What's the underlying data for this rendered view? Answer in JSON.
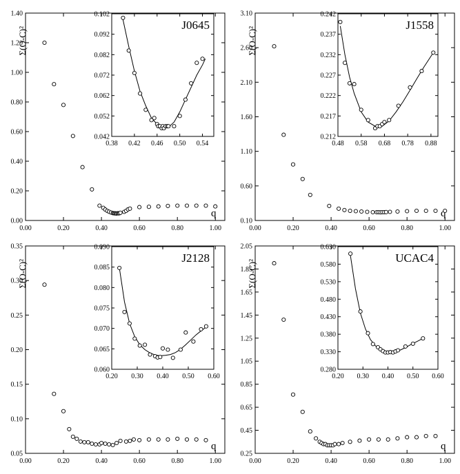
{
  "chart_data": [
    {
      "type": "scatter",
      "id": "J0645",
      "title": "J0645",
      "xlabel": "q",
      "ylabel": "Σ(O-C)²",
      "xlim": [
        0.0,
        1.05
      ],
      "ylim": [
        0.0,
        1.4
      ],
      "xticks": [
        "0.00",
        "0.20",
        "0.40",
        "0.60",
        "0.80",
        "1.00"
      ],
      "yticks": [
        "0.00",
        "0.20",
        "0.40",
        "0.60",
        "0.80",
        "1.00",
        "1.20",
        "1.40"
      ],
      "x": [
        0.1,
        0.15,
        0.2,
        0.25,
        0.3,
        0.35,
        0.39,
        0.41,
        0.42,
        0.43,
        0.44,
        0.45,
        0.46,
        0.465,
        0.47,
        0.475,
        0.48,
        0.485,
        0.49,
        0.495,
        0.5,
        0.52,
        0.53,
        0.54,
        0.55,
        0.6,
        0.65,
        0.7,
        0.75,
        0.8,
        0.85,
        0.9,
        0.95,
        1.0
      ],
      "y": [
        1.2,
        0.92,
        0.78,
        0.57,
        0.36,
        0.21,
        0.1,
        0.085,
        0.074,
        0.065,
        0.059,
        0.054,
        0.05,
        0.049,
        0.048,
        0.048,
        0.047,
        0.049,
        0.048,
        0.049,
        0.052,
        0.058,
        0.065,
        0.075,
        0.08,
        0.09,
        0.092,
        0.095,
        0.098,
        0.1,
        0.1,
        0.1,
        0.1,
        0.095
      ],
      "inset": {
        "xlim": [
          0.38,
          0.56
        ],
        "ylim": [
          0.042,
          0.102
        ],
        "xticks": [
          "0.38",
          "0.42",
          "0.46",
          "0.50",
          "0.54"
        ],
        "yticks": [
          "0.042",
          "0.052",
          "0.062",
          "0.072",
          "0.082",
          "0.092",
          "0.102"
        ],
        "x": [
          0.4,
          0.41,
          0.42,
          0.43,
          0.44,
          0.45,
          0.455,
          0.46,
          0.462,
          0.465,
          0.468,
          0.47,
          0.472,
          0.475,
          0.478,
          0.48,
          0.49,
          0.5,
          0.51,
          0.52,
          0.53,
          0.54
        ],
        "y": [
          0.1,
          0.084,
          0.073,
          0.063,
          0.055,
          0.05,
          0.051,
          0.048,
          0.047,
          0.047,
          0.046,
          0.047,
          0.046,
          0.047,
          0.047,
          0.047,
          0.047,
          0.052,
          0.06,
          0.068,
          0.078,
          0.08
        ],
        "fit_x": [
          0.4,
          0.41,
          0.42,
          0.43,
          0.44,
          0.45,
          0.46,
          0.47,
          0.48,
          0.49,
          0.5,
          0.51,
          0.52,
          0.53,
          0.54,
          0.545
        ],
        "fit_y": [
          0.099,
          0.086,
          0.074,
          0.064,
          0.057,
          0.051,
          0.048,
          0.046,
          0.0465,
          0.049,
          0.054,
          0.06,
          0.066,
          0.072,
          0.077,
          0.08
        ]
      }
    },
    {
      "type": "scatter",
      "id": "J1558",
      "title": "J1558",
      "xlabel": "q",
      "ylabel": "Σ(O-C)²",
      "xlim": [
        0.0,
        1.05
      ],
      "ylim": [
        0.1,
        3.1
      ],
      "xticks": [
        "0.00",
        "0.20",
        "0.40",
        "0.60",
        "0.80",
        "1.00"
      ],
      "yticks": [
        "0.10",
        "0.60",
        "1.10",
        "1.60",
        "2.10",
        "2.60",
        "3.10"
      ],
      "x": [
        0.1,
        0.15,
        0.2,
        0.25,
        0.29,
        0.39,
        0.44,
        0.47,
        0.5,
        0.53,
        0.56,
        0.59,
        0.62,
        0.64,
        0.65,
        0.66,
        0.67,
        0.68,
        0.69,
        0.71,
        0.75,
        0.8,
        0.85,
        0.9,
        0.95,
        1.0
      ],
      "y": [
        2.62,
        1.34,
        0.91,
        0.7,
        0.47,
        0.31,
        0.27,
        0.25,
        0.24,
        0.235,
        0.23,
        0.225,
        0.22,
        0.22,
        0.22,
        0.218,
        0.22,
        0.22,
        0.222,
        0.225,
        0.23,
        0.235,
        0.24,
        0.24,
        0.24,
        0.24
      ],
      "inset": {
        "xlim": [
          0.48,
          0.91
        ],
        "ylim": [
          0.212,
          0.242
        ],
        "xticks": [
          "0.48",
          "0.58",
          "0.68",
          "0.78",
          "0.88"
        ],
        "yticks": [
          "0.212",
          "0.217",
          "0.222",
          "0.227",
          "0.232",
          "0.237",
          "0.242"
        ],
        "x": [
          0.49,
          0.51,
          0.53,
          0.55,
          0.58,
          0.61,
          0.64,
          0.65,
          0.66,
          0.67,
          0.68,
          0.7,
          0.74,
          0.79,
          0.84,
          0.89
        ],
        "y": [
          0.24,
          0.23,
          0.225,
          0.2248,
          0.2185,
          0.216,
          0.214,
          0.2145,
          0.2145,
          0.215,
          0.2155,
          0.216,
          0.2195,
          0.224,
          0.228,
          0.2325
        ],
        "fit_x": [
          0.49,
          0.51,
          0.53,
          0.55,
          0.58,
          0.61,
          0.64,
          0.67,
          0.7,
          0.73,
          0.76,
          0.79,
          0.82,
          0.85,
          0.89
        ],
        "fit_y": [
          0.239,
          0.232,
          0.2265,
          0.2225,
          0.218,
          0.2155,
          0.2145,
          0.2145,
          0.2158,
          0.218,
          0.2205,
          0.2233,
          0.2262,
          0.229,
          0.2325
        ]
      }
    },
    {
      "type": "scatter",
      "id": "J2128",
      "title": "J2128",
      "xlabel": "q",
      "ylabel": "Σ(O-C)²",
      "xlim": [
        0.0,
        1.05
      ],
      "ylim": [
        0.05,
        0.35
      ],
      "xticks": [
        "0.00",
        "0.20",
        "0.40",
        "0.60",
        "0.80",
        "1.00"
      ],
      "yticks": [
        "0.05",
        "0.10",
        "0.15",
        "0.20",
        "0.25",
        "0.30",
        "0.35"
      ],
      "x": [
        0.1,
        0.15,
        0.2,
        0.23,
        0.25,
        0.27,
        0.29,
        0.31,
        0.33,
        0.35,
        0.37,
        0.39,
        0.4,
        0.42,
        0.44,
        0.46,
        0.48,
        0.5,
        0.53,
        0.55,
        0.57,
        0.6,
        0.65,
        0.7,
        0.75,
        0.8,
        0.85,
        0.9,
        0.95
      ],
      "y": [
        0.294,
        0.136,
        0.111,
        0.085,
        0.074,
        0.071,
        0.067,
        0.066,
        0.066,
        0.064,
        0.063,
        0.063,
        0.065,
        0.064,
        0.063,
        0.062,
        0.065,
        0.068,
        0.067,
        0.068,
        0.07,
        0.069,
        0.07,
        0.07,
        0.07,
        0.071,
        0.07,
        0.07,
        0.069
      ],
      "inset": {
        "xlim": [
          0.2,
          0.6
        ],
        "ylim": [
          0.06,
          0.09
        ],
        "xticks": [
          "0.20",
          "0.30",
          "0.40",
          "0.50",
          "0.60"
        ],
        "yticks": [
          "0.060",
          "0.065",
          "0.070",
          "0.075",
          "0.080",
          "0.085",
          "0.090"
        ],
        "x": [
          0.23,
          0.25,
          0.27,
          0.29,
          0.31,
          0.33,
          0.35,
          0.37,
          0.38,
          0.39,
          0.4,
          0.42,
          0.44,
          0.47,
          0.49,
          0.52,
          0.55,
          0.57
        ],
        "y": [
          0.0848,
          0.074,
          0.0712,
          0.0675,
          0.0658,
          0.066,
          0.0636,
          0.0632,
          0.0629,
          0.063,
          0.0651,
          0.0648,
          0.0628,
          0.0648,
          0.069,
          0.0668,
          0.0698,
          0.0705
        ],
        "fit_x": [
          0.23,
          0.25,
          0.27,
          0.29,
          0.31,
          0.33,
          0.35,
          0.37,
          0.39,
          0.41,
          0.43,
          0.45,
          0.47,
          0.49,
          0.51,
          0.53,
          0.55,
          0.57
        ],
        "fit_y": [
          0.0848,
          0.0765,
          0.0712,
          0.068,
          0.066,
          0.0648,
          0.064,
          0.0635,
          0.0633,
          0.0634,
          0.0636,
          0.0641,
          0.0649,
          0.066,
          0.0672,
          0.0684,
          0.0694,
          0.0703
        ]
      }
    },
    {
      "type": "scatter",
      "id": "UCAC4",
      "title": "UCAC4",
      "xlabel": "q",
      "ylabel": "Σ(O-C)²",
      "xlim": [
        0.0,
        1.05
      ],
      "ylim": [
        0.25,
        2.05
      ],
      "xticks": [
        "0.00",
        "0.20",
        "0.40",
        "0.60",
        "0.80",
        "1.00"
      ],
      "yticks": [
        "0.25",
        "0.45",
        "0.65",
        "0.85",
        "1.05",
        "1.25",
        "1.45",
        "1.65",
        "1.85",
        "2.05"
      ],
      "x": [
        0.1,
        0.15,
        0.2,
        0.25,
        0.29,
        0.32,
        0.34,
        0.35,
        0.36,
        0.37,
        0.38,
        0.39,
        0.4,
        0.41,
        0.42,
        0.44,
        0.46,
        0.5,
        0.55,
        0.6,
        0.65,
        0.7,
        0.75,
        0.8,
        0.85,
        0.9,
        0.95
      ],
      "y": [
        1.9,
        1.41,
        0.76,
        0.61,
        0.44,
        0.38,
        0.35,
        0.34,
        0.33,
        0.33,
        0.32,
        0.32,
        0.32,
        0.32,
        0.33,
        0.33,
        0.34,
        0.35,
        0.36,
        0.37,
        0.37,
        0.37,
        0.38,
        0.39,
        0.39,
        0.4,
        0.4
      ],
      "inset": {
        "xlim": [
          0.2,
          0.6
        ],
        "ylim": [
          0.28,
          0.63
        ],
        "xticks": [
          "0.20",
          "0.30",
          "0.40",
          "0.50",
          "0.60"
        ],
        "yticks": [
          "0.280",
          "0.330",
          "0.380",
          "0.430",
          "0.480",
          "0.530",
          "0.580",
          "0.630"
        ],
        "x": [
          0.25,
          0.29,
          0.32,
          0.34,
          0.36,
          0.37,
          0.38,
          0.39,
          0.4,
          0.41,
          0.42,
          0.43,
          0.44,
          0.47,
          0.5,
          0.54
        ],
        "y": [
          0.61,
          0.445,
          0.383,
          0.352,
          0.343,
          0.337,
          0.332,
          0.328,
          0.328,
          0.329,
          0.328,
          0.331,
          0.334,
          0.345,
          0.353,
          0.368
        ],
        "fit_x": [
          0.25,
          0.27,
          0.29,
          0.31,
          0.33,
          0.35,
          0.37,
          0.39,
          0.41,
          0.43,
          0.45,
          0.47,
          0.49,
          0.51,
          0.54
        ],
        "fit_y": [
          0.605,
          0.51,
          0.44,
          0.395,
          0.365,
          0.347,
          0.336,
          0.33,
          0.328,
          0.33,
          0.335,
          0.342,
          0.35,
          0.357,
          0.368
        ]
      }
    }
  ]
}
